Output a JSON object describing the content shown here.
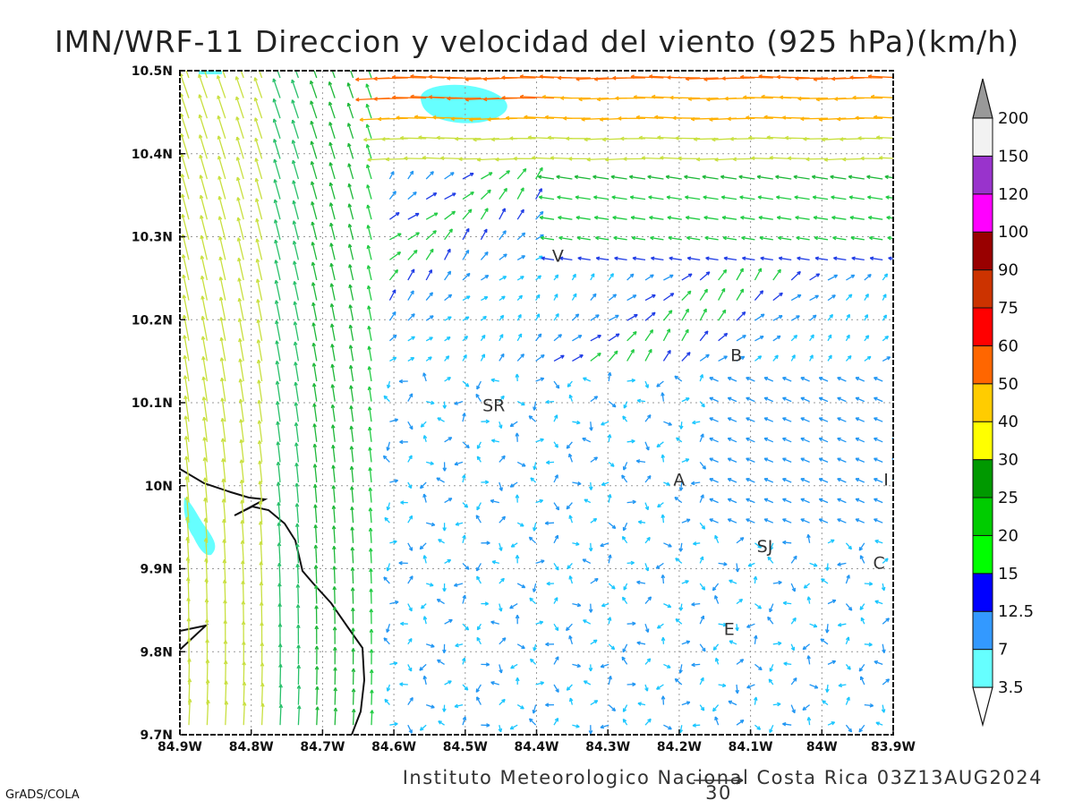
{
  "title": "IMN/WRF-11 Direccion y velocidad del viento (925 hPa)(km/h)",
  "footer": "Instituto Meteorologico Nacional Costa Rica 03Z13AUG2024",
  "credit": "GrADS/COLA",
  "reference_vector": {
    "label": "30",
    "speed_kmh": 30
  },
  "map": {
    "lon_range": [
      -84.9,
      -83.9
    ],
    "lat_range": [
      9.7,
      10.5
    ],
    "grid": "dotted",
    "x_ticks": [
      "84.9W",
      "84.8W",
      "84.7W",
      "84.6W",
      "84.5W",
      "84.4W",
      "84.3W",
      "84.2W",
      "84.1W",
      "84W",
      "83.9W"
    ],
    "y_ticks": [
      "10.5N",
      "10.4N",
      "10.3N",
      "10.2N",
      "10.1N",
      "10N",
      "9.9N",
      "9.8N",
      "9.7N"
    ],
    "places": [
      {
        "name": "V",
        "lon": -84.37,
        "lat": 10.27
      },
      {
        "name": "B",
        "lon": -84.12,
        "lat": 10.15
      },
      {
        "name": "SR",
        "lon": -84.46,
        "lat": 10.09
      },
      {
        "name": "A",
        "lon": -84.2,
        "lat": 10.0
      },
      {
        "name": "SJ",
        "lon": -84.08,
        "lat": 9.92
      },
      {
        "name": "C",
        "lon": -83.92,
        "lat": 9.9
      },
      {
        "name": "E",
        "lon": -84.13,
        "lat": 9.82
      },
      {
        "name": "I",
        "lon": -83.91,
        "lat": 10.0
      }
    ]
  },
  "colorbar": {
    "levels": [
      "3.5",
      "7",
      "12.5",
      "15",
      "20",
      "25",
      "30",
      "40",
      "50",
      "60",
      "75",
      "90",
      "100",
      "120",
      "150",
      "200"
    ],
    "colors": [
      "#66ffff",
      "#3399ff",
      "#0000ff",
      "#00ff00",
      "#00cc00",
      "#009900",
      "#ffff00",
      "#ffcc00",
      "#ff6600",
      "#ff0000",
      "#cc3300",
      "#990000",
      "#ff00ff",
      "#9933cc",
      "#f2f2f2",
      "#999999"
    ]
  }
}
